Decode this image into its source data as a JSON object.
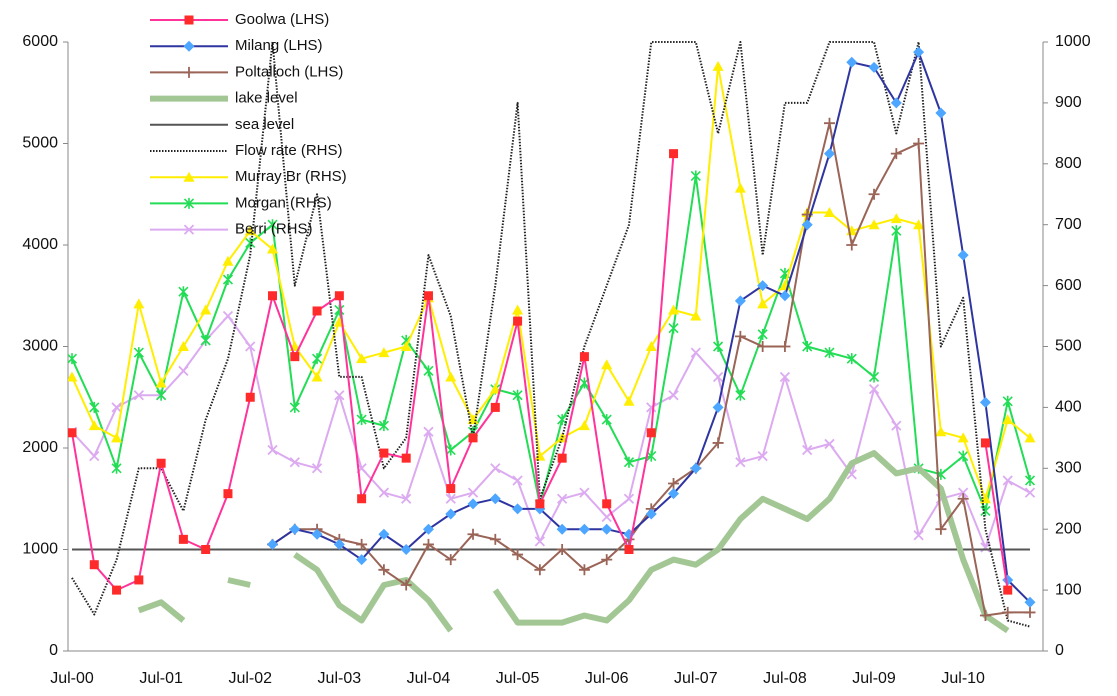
{
  "chart_data": {
    "type": "line",
    "categories": [
      "Jul-00",
      null,
      null,
      null,
      "Jul-01",
      null,
      null,
      null,
      "Jul-02",
      null,
      null,
      null,
      "Jul-03",
      null,
      null,
      null,
      "Jul-04",
      null,
      null,
      null,
      "Jul-05",
      null,
      null,
      null,
      "Jul-06",
      null,
      null,
      null,
      "Jul-07",
      null,
      null,
      null,
      "Jul-08",
      null,
      null,
      null,
      "Jul-09",
      null,
      null,
      null,
      "Jul-10",
      null,
      null,
      null
    ],
    "ylim": [
      0,
      6000
    ],
    "yticks": [
      0,
      1000,
      2000,
      3000,
      4000,
      5000,
      6000
    ],
    "y2lim": [
      0,
      1000
    ],
    "y2ticks": [
      0,
      100,
      200,
      300,
      400,
      500,
      600,
      700,
      800,
      900,
      1000
    ],
    "legend": "top-left",
    "series": [
      {
        "name": "Goolwa (LHS)",
        "color": "#ff3399",
        "marker": "square",
        "marker_color": "#ff2a2a",
        "line_style": "solid",
        "values": [
          2150,
          850,
          600,
          700,
          1850,
          1100,
          1000,
          1550,
          2500,
          3500,
          2900,
          3350,
          3500,
          1500,
          1950,
          1900,
          3500,
          1600,
          2100,
          2400,
          3250,
          1450,
          1900,
          2900,
          1450,
          1000,
          2150,
          4900,
          null,
          null,
          null,
          null,
          null,
          null,
          null,
          null,
          null,
          null,
          null,
          null,
          null,
          2050,
          600,
          null
        ]
      },
      {
        "name": "Milang (LHS)",
        "color": "#2f35a0",
        "marker": "diamond",
        "marker_color": "#4da6ff",
        "line_style": "solid",
        "values": [
          null,
          null,
          null,
          null,
          null,
          null,
          null,
          null,
          null,
          1050,
          1200,
          1150,
          1050,
          900,
          1150,
          1000,
          1200,
          1350,
          1450,
          1500,
          1400,
          1400,
          1200,
          1200,
          1200,
          1150,
          1350,
          1550,
          1800,
          2400,
          3450,
          3600,
          3500,
          4200,
          4900,
          5800,
          5750,
          5400,
          5900,
          5300,
          3900,
          2450,
          700,
          480
        ]
      },
      {
        "name": "Poltalloch (LHS)",
        "color": "#9a6457",
        "marker": "plus",
        "marker_color": "#9a6457",
        "line_style": "solid",
        "values": [
          null,
          null,
          null,
          null,
          null,
          null,
          null,
          null,
          null,
          1050,
          1200,
          1200,
          1100,
          1050,
          800,
          650,
          1050,
          900,
          1150,
          1100,
          950,
          800,
          1000,
          800,
          900,
          1100,
          1400,
          1650,
          1800,
          2050,
          3100,
          3000,
          3000,
          4300,
          5200,
          4000,
          4500,
          4900,
          5000,
          1200,
          1500,
          350,
          380,
          380
        ]
      },
      {
        "name": "lake level",
        "color": "#a3c794",
        "marker": "none",
        "marker_color": "#a3c794",
        "line_style": "thick",
        "values": [
          null,
          null,
          null,
          400,
          480,
          300,
          null,
          700,
          650,
          null,
          950,
          800,
          450,
          300,
          650,
          700,
          500,
          200,
          null,
          600,
          280,
          280,
          280,
          350,
          300,
          500,
          800,
          900,
          850,
          1000,
          1300,
          1500,
          1400,
          1300,
          1500,
          1850,
          1950,
          1750,
          1800,
          1600,
          900,
          350,
          200,
          null
        ]
      },
      {
        "name": "sea level",
        "color": "#555555",
        "marker": "none",
        "marker_color": "#555555",
        "line_style": "solid",
        "values": [
          1000,
          1000,
          1000,
          1000,
          1000,
          1000,
          1000,
          1000,
          1000,
          1000,
          1000,
          1000,
          1000,
          1000,
          1000,
          1000,
          1000,
          1000,
          1000,
          1000,
          1000,
          1000,
          1000,
          1000,
          1000,
          1000,
          1000,
          1000,
          1000,
          1000,
          1000,
          1000,
          1000,
          1000,
          1000,
          1000,
          1000,
          1000,
          1000,
          1000,
          1000,
          1000,
          1000,
          1000
        ]
      },
      {
        "name": "Flow rate (RHS)",
        "color": "#222222",
        "marker": "none",
        "marker_color": "#222222",
        "line_style": "dotted",
        "axis": "y2",
        "values": [
          120,
          60,
          150,
          300,
          300,
          230,
          380,
          480,
          650,
          1000,
          600,
          750,
          450,
          450,
          300,
          350,
          650,
          550,
          350,
          600,
          900,
          250,
          350,
          500,
          600,
          700,
          1000,
          1000,
          1000,
          850,
          1000,
          650,
          900,
          900,
          1000,
          1000,
          1000,
          850,
          1000,
          500,
          580,
          200,
          50,
          40
        ]
      },
      {
        "name": "Murray Br (RHS)",
        "color": "#ffee00",
        "marker": "triangle",
        "marker_color": "#ffee00",
        "line_style": "solid",
        "axis": "y2",
        "values": [
          450,
          370,
          350,
          570,
          440,
          500,
          560,
          640,
          690,
          660,
          500,
          450,
          540,
          480,
          490,
          500,
          580,
          450,
          380,
          430,
          560,
          320,
          350,
          370,
          470,
          410,
          500,
          560,
          550,
          960,
          760,
          570,
          600,
          720,
          720,
          690,
          700,
          710,
          700,
          360,
          350,
          250,
          380,
          350
        ]
      },
      {
        "name": "Morgan (RHS)",
        "color": "#22dd55",
        "marker": "star",
        "marker_color": "#22dd55",
        "line_style": "solid",
        "axis": "y2",
        "values": [
          480,
          400,
          300,
          490,
          420,
          590,
          510,
          610,
          670,
          700,
          400,
          480,
          560,
          380,
          370,
          510,
          460,
          330,
          360,
          430,
          420,
          240,
          380,
          440,
          380,
          310,
          320,
          530,
          780,
          500,
          420,
          520,
          620,
          500,
          490,
          480,
          450,
          690,
          300,
          290,
          320,
          230,
          410,
          280
        ]
      },
      {
        "name": "Berri (RHS)",
        "color": "#dcaaf0",
        "marker": "x",
        "marker_color": "#dcaaf0",
        "line_style": "solid",
        "axis": "y2",
        "values": [
          360,
          320,
          400,
          420,
          420,
          460,
          510,
          550,
          500,
          330,
          310,
          300,
          420,
          300,
          260,
          250,
          360,
          250,
          260,
          300,
          280,
          180,
          250,
          260,
          220,
          250,
          400,
          420,
          490,
          450,
          310,
          320,
          450,
          330,
          340,
          290,
          430,
          370,
          190,
          250,
          260,
          170,
          280,
          260
        ]
      }
    ]
  }
}
